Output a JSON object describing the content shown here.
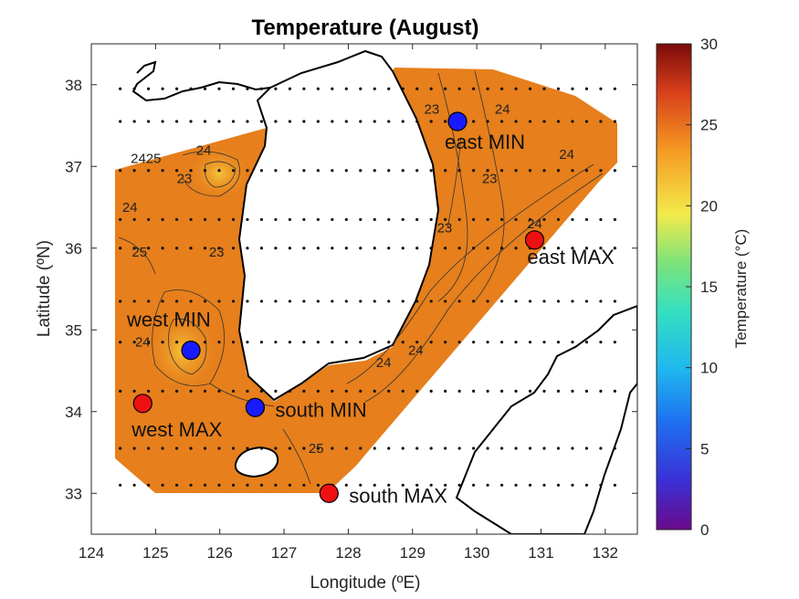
{
  "chart_data": {
    "type": "map",
    "title": "Temperature (August)",
    "xlabel": "Longitude (ºE)",
    "ylabel": "Latitude (ºN)",
    "xlim": [
      124,
      132.5
    ],
    "ylim": [
      32.5,
      38.5
    ],
    "xticks": [
      "124",
      "125",
      "126",
      "127",
      "128",
      "129",
      "130",
      "131",
      "132"
    ],
    "yticks": [
      "33",
      "34",
      "35",
      "36",
      "37",
      "38"
    ],
    "colorbar": {
      "label": "Temperature (°C)",
      "range": [
        0,
        30
      ],
      "ticks": [
        "0",
        "5",
        "10",
        "15",
        "20",
        "25",
        "30"
      ],
      "colormap": "jet"
    },
    "contour_labels": [
      {
        "text": "23",
        "lon": 129.3,
        "lat": 37.7
      },
      {
        "text": "24",
        "lon": 130.4,
        "lat": 37.7
      },
      {
        "text": "24",
        "lon": 131.4,
        "lat": 37.15
      },
      {
        "text": "23",
        "lon": 130.2,
        "lat": 36.85
      },
      {
        "text": "23",
        "lon": 129.5,
        "lat": 36.25
      },
      {
        "text": "24",
        "lon": 130.9,
        "lat": 36.3
      },
      {
        "text": "2425",
        "lon": 124.85,
        "lat": 37.1
      },
      {
        "text": "24",
        "lon": 125.75,
        "lat": 37.2
      },
      {
        "text": "23",
        "lon": 125.45,
        "lat": 36.85
      },
      {
        "text": "24",
        "lon": 124.6,
        "lat": 36.5
      },
      {
        "text": "25",
        "lon": 124.75,
        "lat": 35.95
      },
      {
        "text": "23",
        "lon": 125.95,
        "lat": 35.95
      },
      {
        "text": "24",
        "lon": 124.8,
        "lat": 34.85
      },
      {
        "text": "24",
        "lon": 128.55,
        "lat": 34.6
      },
      {
        "text": "24",
        "lon": 129.05,
        "lat": 34.75
      },
      {
        "text": "25",
        "lon": 127.5,
        "lat": 33.55
      }
    ],
    "points": [
      {
        "name": "east MIN",
        "lon": 129.7,
        "lat": 37.55,
        "kind": "min"
      },
      {
        "name": "east MAX",
        "lon": 130.9,
        "lat": 36.1,
        "kind": "max"
      },
      {
        "name": "west MIN",
        "lon": 125.55,
        "lat": 34.75,
        "kind": "min"
      },
      {
        "name": "west MAX",
        "lon": 124.8,
        "lat": 34.1,
        "kind": "max"
      },
      {
        "name": "south MIN",
        "lon": 126.55,
        "lat": 34.05,
        "kind": "min"
      },
      {
        "name": "south MAX",
        "lon": 127.7,
        "lat": 33.0,
        "kind": "max"
      }
    ],
    "colors": {
      "field": "#e67f1c",
      "min_marker": "#1a1aff",
      "max_marker": "#ee1111"
    }
  }
}
